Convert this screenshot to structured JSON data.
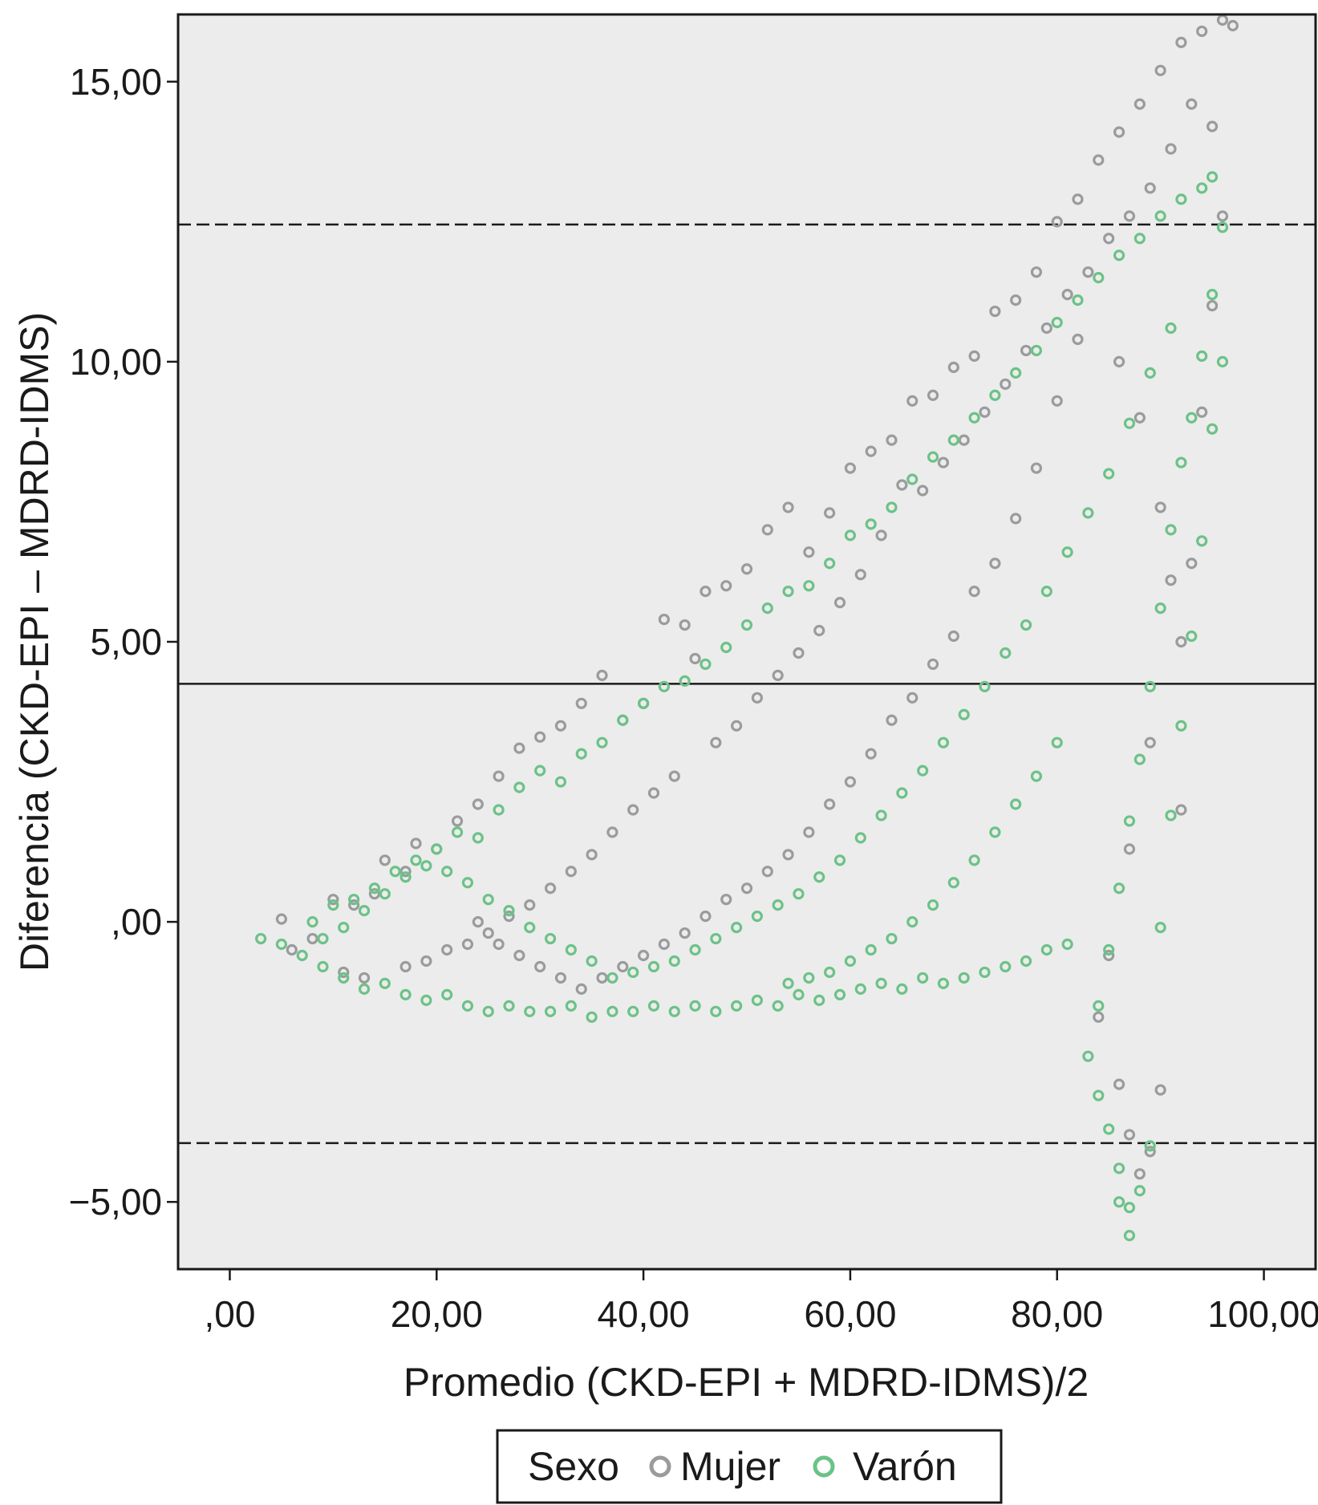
{
  "chart_data": {
    "type": "scatter",
    "title": "",
    "xlabel": "Promedio (CKD-EPI + MDRD-IDMS)/2",
    "ylabel": "Diferencia (CKD-EPI – MDRD-IDMS)",
    "xlim": [
      -5,
      105
    ],
    "ylim": [
      -6.2,
      16.2
    ],
    "x_ticks": [
      {
        "value": 0,
        "label": ",00",
        "color": "#d4542c"
      },
      {
        "value": 20,
        "label": "20,00"
      },
      {
        "value": 40,
        "label": "40,00"
      },
      {
        "value": 60,
        "label": "60,00"
      },
      {
        "value": 80,
        "label": "80,00"
      },
      {
        "value": 100,
        "label": "100,00"
      }
    ],
    "y_ticks": [
      {
        "value": 15,
        "label": "15,00"
      },
      {
        "value": 10,
        "label": "10,00"
      },
      {
        "value": 5,
        "label": "5,00"
      },
      {
        "value": 0,
        "label": ",00"
      },
      {
        "value": -5,
        "label": "−5,00"
      }
    ],
    "reference_lines": [
      {
        "y": 12.45,
        "style": "dashed",
        "meaning": "upper limit"
      },
      {
        "y": 4.25,
        "style": "solid",
        "meaning": "mean"
      },
      {
        "y": -3.95,
        "style": "dashed",
        "meaning": "lower limit"
      }
    ],
    "grid": false,
    "background": "#ececec",
    "legend": {
      "title": "Sexo",
      "placement": "bottom-center",
      "entries": [
        {
          "name": "Mujer",
          "color": "#9a9b9d"
        },
        {
          "name": "Varón",
          "color": "#6cc287"
        }
      ]
    },
    "series": [
      {
        "name": "Mujer",
        "color": "#9a9b9d",
        "points": [
          [
            5,
            0.05
          ],
          [
            6,
            -0.5
          ],
          [
            8,
            -0.3
          ],
          [
            10,
            0.4
          ],
          [
            12,
            0.3
          ],
          [
            14,
            0.5
          ],
          [
            15,
            1.1
          ],
          [
            17,
            0.9
          ],
          [
            18,
            1.4
          ],
          [
            20,
            1.3
          ],
          [
            22,
            1.8
          ],
          [
            24,
            2.1
          ],
          [
            26,
            2.6
          ],
          [
            28,
            3.1
          ],
          [
            30,
            3.3
          ],
          [
            32,
            3.5
          ],
          [
            34,
            3.9
          ],
          [
            36,
            4.4
          ],
          [
            38,
            3.6
          ],
          [
            40,
            3.9
          ],
          [
            42,
            5.4
          ],
          [
            44,
            5.3
          ],
          [
            45,
            4.7
          ],
          [
            46,
            5.9
          ],
          [
            48,
            6.0
          ],
          [
            50,
            6.3
          ],
          [
            52,
            7.0
          ],
          [
            54,
            7.4
          ],
          [
            56,
            6.6
          ],
          [
            58,
            7.3
          ],
          [
            60,
            8.1
          ],
          [
            62,
            8.4
          ],
          [
            64,
            8.6
          ],
          [
            65,
            7.8
          ],
          [
            66,
            9.3
          ],
          [
            68,
            9.4
          ],
          [
            70,
            9.9
          ],
          [
            72,
            10.1
          ],
          [
            74,
            10.9
          ],
          [
            76,
            11.1
          ],
          [
            78,
            11.6
          ],
          [
            80,
            12.5
          ],
          [
            82,
            12.9
          ],
          [
            84,
            13.6
          ],
          [
            86,
            14.1
          ],
          [
            88,
            14.6
          ],
          [
            90,
            15.2
          ],
          [
            92,
            15.7
          ],
          [
            94,
            15.9
          ],
          [
            96,
            16.1
          ],
          [
            97,
            16.0
          ],
          [
            93,
            14.6
          ],
          [
            91,
            13.8
          ],
          [
            89,
            13.1
          ],
          [
            87,
            12.6
          ],
          [
            85,
            12.2
          ],
          [
            83,
            11.6
          ],
          [
            81,
            11.2
          ],
          [
            79,
            10.6
          ],
          [
            77,
            10.2
          ],
          [
            75,
            9.6
          ],
          [
            73,
            9.1
          ],
          [
            71,
            8.6
          ],
          [
            69,
            8.2
          ],
          [
            67,
            7.7
          ],
          [
            63,
            6.9
          ],
          [
            61,
            6.2
          ],
          [
            59,
            5.7
          ],
          [
            57,
            5.2
          ],
          [
            55,
            4.8
          ],
          [
            53,
            4.4
          ],
          [
            51,
            4.0
          ],
          [
            49,
            3.5
          ],
          [
            47,
            3.2
          ],
          [
            43,
            2.6
          ],
          [
            41,
            2.3
          ],
          [
            39,
            2.0
          ],
          [
            37,
            1.6
          ],
          [
            35,
            1.2
          ],
          [
            33,
            0.9
          ],
          [
            31,
            0.6
          ],
          [
            29,
            0.3
          ],
          [
            27,
            0.1
          ],
          [
            25,
            -0.2
          ],
          [
            23,
            -0.4
          ],
          [
            21,
            -0.5
          ],
          [
            19,
            -0.7
          ],
          [
            17,
            -0.8
          ],
          [
            13,
            -1.0
          ],
          [
            11,
            -0.9
          ],
          [
            86,
            10.0
          ],
          [
            88,
            9.0
          ],
          [
            90,
            7.4
          ],
          [
            92,
            5.0
          ],
          [
            91,
            6.1
          ],
          [
            89,
            3.2
          ],
          [
            87,
            1.3
          ],
          [
            85,
            -0.6
          ],
          [
            84,
            -1.7
          ],
          [
            86,
            -2.9
          ],
          [
            87,
            -3.8
          ],
          [
            88,
            -4.5
          ],
          [
            89,
            -4.1
          ],
          [
            90,
            -3.0
          ],
          [
            92,
            2.0
          ],
          [
            93,
            6.4
          ],
          [
            94,
            9.1
          ],
          [
            95,
            11.0
          ],
          [
            96,
            12.6
          ],
          [
            95,
            14.2
          ],
          [
            82,
            10.4
          ],
          [
            80,
            9.3
          ],
          [
            78,
            8.1
          ],
          [
            76,
            7.2
          ],
          [
            74,
            6.4
          ],
          [
            72,
            5.9
          ],
          [
            70,
            5.1
          ],
          [
            68,
            4.6
          ],
          [
            66,
            4.0
          ],
          [
            64,
            3.6
          ],
          [
            62,
            3.0
          ],
          [
            60,
            2.5
          ],
          [
            58,
            2.1
          ],
          [
            56,
            1.6
          ],
          [
            54,
            1.2
          ],
          [
            52,
            0.9
          ],
          [
            50,
            0.6
          ],
          [
            48,
            0.4
          ],
          [
            46,
            0.1
          ],
          [
            44,
            -0.2
          ],
          [
            42,
            -0.4
          ],
          [
            40,
            -0.6
          ],
          [
            38,
            -0.8
          ],
          [
            36,
            -1.0
          ],
          [
            34,
            -1.2
          ],
          [
            32,
            -1.0
          ],
          [
            30,
            -0.8
          ],
          [
            28,
            -0.6
          ],
          [
            26,
            -0.4
          ],
          [
            24,
            0.0
          ]
        ]
      },
      {
        "name": "Varón",
        "color": "#6cc287",
        "points": [
          [
            3,
            -0.3
          ],
          [
            5,
            -0.4
          ],
          [
            7,
            -0.6
          ],
          [
            9,
            -0.8
          ],
          [
            11,
            -1.0
          ],
          [
            13,
            -1.2
          ],
          [
            15,
            -1.1
          ],
          [
            17,
            -1.3
          ],
          [
            19,
            -1.4
          ],
          [
            21,
            -1.3
          ],
          [
            23,
            -1.5
          ],
          [
            25,
            -1.6
          ],
          [
            27,
            -1.5
          ],
          [
            29,
            -1.6
          ],
          [
            31,
            -1.6
          ],
          [
            33,
            -1.5
          ],
          [
            35,
            -1.7
          ],
          [
            37,
            -1.6
          ],
          [
            39,
            -1.6
          ],
          [
            41,
            -1.5
          ],
          [
            43,
            -1.6
          ],
          [
            45,
            -1.5
          ],
          [
            47,
            -1.6
          ],
          [
            49,
            -1.5
          ],
          [
            51,
            -1.4
          ],
          [
            53,
            -1.5
          ],
          [
            55,
            -1.3
          ],
          [
            57,
            -1.4
          ],
          [
            59,
            -1.3
          ],
          [
            61,
            -1.2
          ],
          [
            63,
            -1.1
          ],
          [
            65,
            -1.2
          ],
          [
            67,
            -1.0
          ],
          [
            69,
            -1.1
          ],
          [
            71,
            -1.0
          ],
          [
            73,
            -0.9
          ],
          [
            75,
            -0.8
          ],
          [
            77,
            -0.7
          ],
          [
            79,
            -0.5
          ],
          [
            81,
            -0.4
          ],
          [
            8,
            0.0
          ],
          [
            10,
            0.3
          ],
          [
            12,
            0.4
          ],
          [
            14,
            0.6
          ],
          [
            16,
            0.9
          ],
          [
            18,
            1.1
          ],
          [
            20,
            1.3
          ],
          [
            22,
            1.6
          ],
          [
            24,
            1.5
          ],
          [
            26,
            2.0
          ],
          [
            28,
            2.4
          ],
          [
            30,
            2.7
          ],
          [
            32,
            2.5
          ],
          [
            34,
            3.0
          ],
          [
            36,
            3.2
          ],
          [
            38,
            3.6
          ],
          [
            40,
            3.9
          ],
          [
            42,
            4.2
          ],
          [
            44,
            4.3
          ],
          [
            46,
            4.6
          ],
          [
            48,
            4.9
          ],
          [
            50,
            5.3
          ],
          [
            52,
            5.6
          ],
          [
            54,
            5.9
          ],
          [
            56,
            6.0
          ],
          [
            58,
            6.4
          ],
          [
            60,
            6.9
          ],
          [
            62,
            7.1
          ],
          [
            64,
            7.4
          ],
          [
            66,
            7.9
          ],
          [
            68,
            8.3
          ],
          [
            70,
            8.6
          ],
          [
            72,
            9.0
          ],
          [
            74,
            9.4
          ],
          [
            76,
            9.8
          ],
          [
            78,
            10.2
          ],
          [
            80,
            10.7
          ],
          [
            82,
            11.1
          ],
          [
            84,
            11.5
          ],
          [
            86,
            11.9
          ],
          [
            88,
            12.2
          ],
          [
            90,
            12.6
          ],
          [
            92,
            12.9
          ],
          [
            94,
            13.1
          ],
          [
            95,
            13.3
          ],
          [
            96,
            12.4
          ],
          [
            95,
            11.2
          ],
          [
            94,
            10.1
          ],
          [
            93,
            9.0
          ],
          [
            92,
            8.2
          ],
          [
            91,
            7.0
          ],
          [
            90,
            5.6
          ],
          [
            89,
            4.2
          ],
          [
            88,
            2.9
          ],
          [
            87,
            1.8
          ],
          [
            86,
            0.6
          ],
          [
            85,
            -0.5
          ],
          [
            84,
            -1.5
          ],
          [
            83,
            -2.4
          ],
          [
            84,
            -3.1
          ],
          [
            85,
            -3.7
          ],
          [
            86,
            -4.4
          ],
          [
            87,
            -5.1
          ],
          [
            87,
            -5.6
          ],
          [
            86,
            -5.0
          ],
          [
            88,
            -4.8
          ],
          [
            89,
            -4.0
          ],
          [
            90,
            -0.1
          ],
          [
            91,
            1.9
          ],
          [
            92,
            3.5
          ],
          [
            93,
            5.1
          ],
          [
            94,
            6.8
          ],
          [
            95,
            8.8
          ],
          [
            96,
            10.0
          ],
          [
            91,
            10.6
          ],
          [
            89,
            9.8
          ],
          [
            87,
            8.9
          ],
          [
            85,
            8.0
          ],
          [
            83,
            7.3
          ],
          [
            81,
            6.6
          ],
          [
            79,
            5.9
          ],
          [
            77,
            5.3
          ],
          [
            75,
            4.8
          ],
          [
            73,
            4.2
          ],
          [
            71,
            3.7
          ],
          [
            69,
            3.2
          ],
          [
            67,
            2.7
          ],
          [
            65,
            2.3
          ],
          [
            63,
            1.9
          ],
          [
            61,
            1.5
          ],
          [
            59,
            1.1
          ],
          [
            57,
            0.8
          ],
          [
            55,
            0.5
          ],
          [
            53,
            0.3
          ],
          [
            51,
            0.1
          ],
          [
            49,
            -0.1
          ],
          [
            47,
            -0.3
          ],
          [
            45,
            -0.5
          ],
          [
            43,
            -0.7
          ],
          [
            41,
            -0.8
          ],
          [
            39,
            -0.9
          ],
          [
            37,
            -1.0
          ],
          [
            35,
            -0.7
          ],
          [
            33,
            -0.5
          ],
          [
            31,
            -0.3
          ],
          [
            29,
            -0.1
          ],
          [
            27,
            0.2
          ],
          [
            25,
            0.4
          ],
          [
            23,
            0.7
          ],
          [
            21,
            0.9
          ],
          [
            19,
            1.0
          ],
          [
            17,
            0.8
          ],
          [
            15,
            0.5
          ],
          [
            13,
            0.2
          ],
          [
            11,
            -0.1
          ],
          [
            9,
            -0.3
          ],
          [
            80,
            3.2
          ],
          [
            78,
            2.6
          ],
          [
            76,
            2.1
          ],
          [
            74,
            1.6
          ],
          [
            72,
            1.1
          ],
          [
            70,
            0.7
          ],
          [
            68,
            0.3
          ],
          [
            66,
            0.0
          ],
          [
            64,
            -0.3
          ],
          [
            62,
            -0.5
          ],
          [
            60,
            -0.7
          ],
          [
            58,
            -0.9
          ],
          [
            56,
            -1.0
          ],
          [
            54,
            -1.1
          ]
        ]
      }
    ]
  }
}
